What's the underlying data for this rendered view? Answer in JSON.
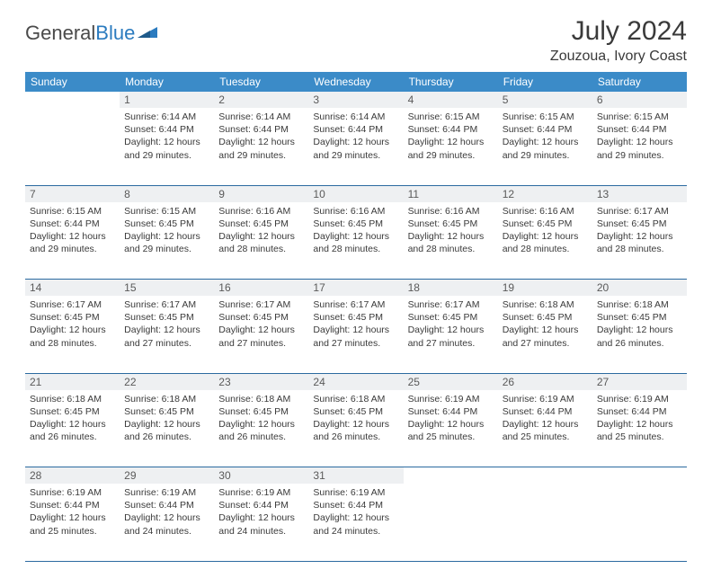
{
  "logo": {
    "part1": "General",
    "part2": "Blue"
  },
  "title": "July 2024",
  "location": "Zouzoua, Ivory Coast",
  "colors": {
    "header_bg": "#3b8bc8",
    "header_text": "#ffffff",
    "daynum_bg": "#eef0f2",
    "daynum_text": "#5a5a5a",
    "border": "#2b6aa0",
    "logo_gray": "#4a4a4a",
    "logo_blue": "#2b7bbf",
    "body_text": "#3a3a3a"
  },
  "weekdays": [
    "Sunday",
    "Monday",
    "Tuesday",
    "Wednesday",
    "Thursday",
    "Friday",
    "Saturday"
  ],
  "weeks": [
    [
      null,
      {
        "n": "1",
        "sr": "6:14 AM",
        "ss": "6:44 PM",
        "dh": "12",
        "dm": "29"
      },
      {
        "n": "2",
        "sr": "6:14 AM",
        "ss": "6:44 PM",
        "dh": "12",
        "dm": "29"
      },
      {
        "n": "3",
        "sr": "6:14 AM",
        "ss": "6:44 PM",
        "dh": "12",
        "dm": "29"
      },
      {
        "n": "4",
        "sr": "6:15 AM",
        "ss": "6:44 PM",
        "dh": "12",
        "dm": "29"
      },
      {
        "n": "5",
        "sr": "6:15 AM",
        "ss": "6:44 PM",
        "dh": "12",
        "dm": "29"
      },
      {
        "n": "6",
        "sr": "6:15 AM",
        "ss": "6:44 PM",
        "dh": "12",
        "dm": "29"
      }
    ],
    [
      {
        "n": "7",
        "sr": "6:15 AM",
        "ss": "6:44 PM",
        "dh": "12",
        "dm": "29"
      },
      {
        "n": "8",
        "sr": "6:15 AM",
        "ss": "6:45 PM",
        "dh": "12",
        "dm": "29"
      },
      {
        "n": "9",
        "sr": "6:16 AM",
        "ss": "6:45 PM",
        "dh": "12",
        "dm": "28"
      },
      {
        "n": "10",
        "sr": "6:16 AM",
        "ss": "6:45 PM",
        "dh": "12",
        "dm": "28"
      },
      {
        "n": "11",
        "sr": "6:16 AM",
        "ss": "6:45 PM",
        "dh": "12",
        "dm": "28"
      },
      {
        "n": "12",
        "sr": "6:16 AM",
        "ss": "6:45 PM",
        "dh": "12",
        "dm": "28"
      },
      {
        "n": "13",
        "sr": "6:17 AM",
        "ss": "6:45 PM",
        "dh": "12",
        "dm": "28"
      }
    ],
    [
      {
        "n": "14",
        "sr": "6:17 AM",
        "ss": "6:45 PM",
        "dh": "12",
        "dm": "28"
      },
      {
        "n": "15",
        "sr": "6:17 AM",
        "ss": "6:45 PM",
        "dh": "12",
        "dm": "27"
      },
      {
        "n": "16",
        "sr": "6:17 AM",
        "ss": "6:45 PM",
        "dh": "12",
        "dm": "27"
      },
      {
        "n": "17",
        "sr": "6:17 AM",
        "ss": "6:45 PM",
        "dh": "12",
        "dm": "27"
      },
      {
        "n": "18",
        "sr": "6:17 AM",
        "ss": "6:45 PM",
        "dh": "12",
        "dm": "27"
      },
      {
        "n": "19",
        "sr": "6:18 AM",
        "ss": "6:45 PM",
        "dh": "12",
        "dm": "27"
      },
      {
        "n": "20",
        "sr": "6:18 AM",
        "ss": "6:45 PM",
        "dh": "12",
        "dm": "26"
      }
    ],
    [
      {
        "n": "21",
        "sr": "6:18 AM",
        "ss": "6:45 PM",
        "dh": "12",
        "dm": "26"
      },
      {
        "n": "22",
        "sr": "6:18 AM",
        "ss": "6:45 PM",
        "dh": "12",
        "dm": "26"
      },
      {
        "n": "23",
        "sr": "6:18 AM",
        "ss": "6:45 PM",
        "dh": "12",
        "dm": "26"
      },
      {
        "n": "24",
        "sr": "6:18 AM",
        "ss": "6:45 PM",
        "dh": "12",
        "dm": "26"
      },
      {
        "n": "25",
        "sr": "6:19 AM",
        "ss": "6:44 PM",
        "dh": "12",
        "dm": "25"
      },
      {
        "n": "26",
        "sr": "6:19 AM",
        "ss": "6:44 PM",
        "dh": "12",
        "dm": "25"
      },
      {
        "n": "27",
        "sr": "6:19 AM",
        "ss": "6:44 PM",
        "dh": "12",
        "dm": "25"
      }
    ],
    [
      {
        "n": "28",
        "sr": "6:19 AM",
        "ss": "6:44 PM",
        "dh": "12",
        "dm": "25"
      },
      {
        "n": "29",
        "sr": "6:19 AM",
        "ss": "6:44 PM",
        "dh": "12",
        "dm": "24"
      },
      {
        "n": "30",
        "sr": "6:19 AM",
        "ss": "6:44 PM",
        "dh": "12",
        "dm": "24"
      },
      {
        "n": "31",
        "sr": "6:19 AM",
        "ss": "6:44 PM",
        "dh": "12",
        "dm": "24"
      },
      null,
      null,
      null
    ]
  ],
  "labels": {
    "sunrise": "Sunrise:",
    "sunset": "Sunset:",
    "daylight_prefix": "Daylight:",
    "hours_word": "hours",
    "and_word": "and",
    "minutes_word": "minutes."
  }
}
